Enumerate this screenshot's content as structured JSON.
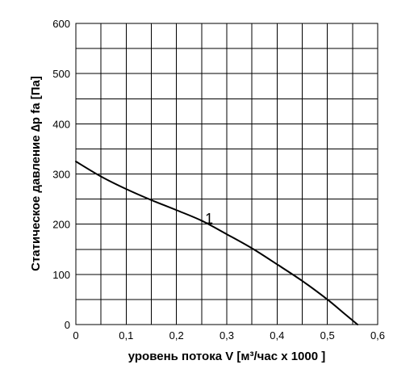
{
  "chart_data": {
    "type": "line",
    "title": "",
    "xlabel": "уровень потока  V [м³/час x 1000 ]",
    "ylabel": "Статическое давление  ∆p fa [Па]",
    "xlim": [
      0,
      0.6
    ],
    "ylim": [
      0,
      600
    ],
    "x_ticks": [
      "0",
      "0,1",
      "0,2",
      "0,3",
      "0,4",
      "0,5",
      "0,6"
    ],
    "y_ticks": [
      "0",
      "100",
      "200",
      "300",
      "400",
      "500",
      "600"
    ],
    "grid": true,
    "grid_x_step": 0.05,
    "grid_y_step": 50,
    "series": [
      {
        "name": "1",
        "x": [
          0,
          0.05,
          0.1,
          0.15,
          0.2,
          0.25,
          0.3,
          0.35,
          0.4,
          0.45,
          0.5,
          0.53,
          0.56
        ],
        "y": [
          325,
          295,
          270,
          248,
          228,
          207,
          180,
          152,
          120,
          87,
          50,
          25,
          0
        ]
      }
    ],
    "curve_label": {
      "text": "1",
      "x": 0.265,
      "y": 212
    }
  }
}
